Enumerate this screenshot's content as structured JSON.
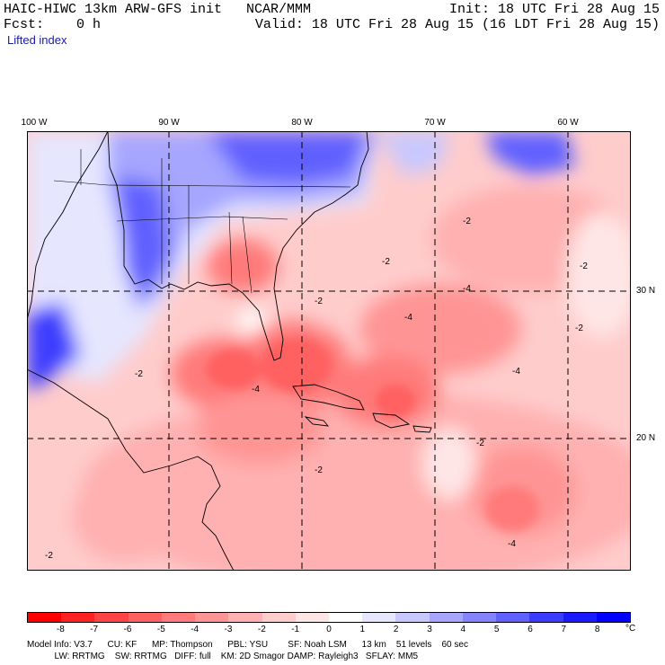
{
  "header": {
    "title": "HAIC-HIWC 13km ARW-GFS init   NCAR/MMM",
    "forecast": "Fcst:    0 h",
    "init": "Init: 18 UTC Fri 28 Aug 15",
    "valid": "Valid: 18 UTC Fri 28 Aug 15 (16 LDT Fri 28 Aug 15)",
    "field": "Lifted index"
  },
  "map": {
    "lon_labels": [
      "100 W",
      "90 W",
      "80 W",
      "70 W",
      "60 W"
    ],
    "lat_labels": [
      "30 N",
      "20 N"
    ],
    "contour_labels": [
      "-2",
      "-4"
    ]
  },
  "colorbar": {
    "unit": "°C",
    "ticks": [
      "-8",
      "-7",
      "-6",
      "-5",
      "-4",
      "-3",
      "-2",
      "-1",
      "0",
      "1",
      "2",
      "3",
      "4",
      "5",
      "6",
      "7",
      "8"
    ],
    "colors": [
      "#ff0000",
      "#ff2222",
      "#ff4444",
      "#ff6060",
      "#ff7a7a",
      "#ff9494",
      "#ffb0b0",
      "#ffcccc",
      "#ffe6e6",
      "#ffffff",
      "#e6e6ff",
      "#c8c8ff",
      "#a6a6ff",
      "#8484ff",
      "#6060ff",
      "#3c3cff",
      "#1a1aff",
      "#0000ff"
    ]
  },
  "model_info": {
    "line1": "Model Info: V3.7      CU: KF      MP: Thompson      PBL: YSU        SF: Noah LSM      13 km    51 levels    60 sec",
    "line2": "           LW: RRTMG    SW: RRTMG   DIFF: full    KM: 2D Smagor DAMP: Rayleigh3   SFLAY: MM5"
  }
}
